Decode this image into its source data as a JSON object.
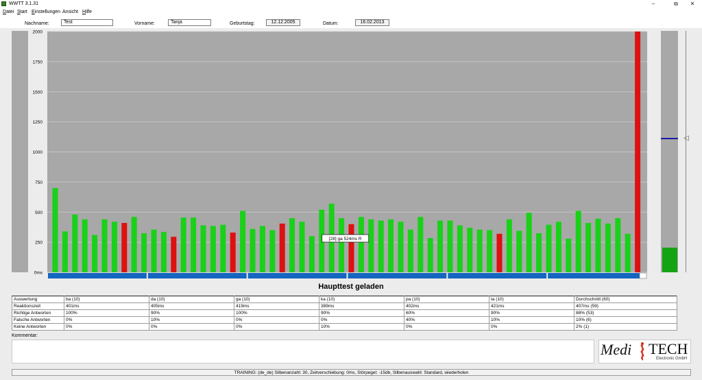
{
  "window": {
    "title": "WWTT 3.1.31",
    "minimize": "–",
    "maximize": "⧉",
    "close": "✕"
  },
  "menu": [
    {
      "hot": "D",
      "rest": "atei"
    },
    {
      "hot": "S",
      "rest": "tart"
    },
    {
      "hot": "E",
      "rest": "instellungen"
    },
    {
      "hot": "",
      "rest": "Ansicht"
    },
    {
      "hot": "H",
      "rest": "ilfe"
    }
  ],
  "header": {
    "nachname_label": "Nachname:",
    "nachname_value": "Test",
    "vorname_label": "Vorname:",
    "vorname_value": "Tanja",
    "geburtstag_label": "Geburtstag:",
    "geburtstag_value": "12.12.2005",
    "datum_label": "Datum:",
    "datum_value": "16.02.2013"
  },
  "chart_data": {
    "type": "bar",
    "title": "",
    "xlabel": "",
    "ylabel": "",
    "ylim": [
      0,
      2000
    ],
    "ytick_labels": [
      "2000",
      "1750",
      "1500",
      "1250",
      "1000",
      "750",
      "500",
      "250",
      "0ms"
    ],
    "yticks": [
      2000,
      1750,
      1500,
      1250,
      1000,
      750,
      500,
      250,
      0
    ],
    "grid": true,
    "colors": {
      "correct": "#19d119",
      "wrong": "#dd1111",
      "background": "#a8a8a8",
      "grid": "#c4c4c4",
      "segment": "#1566c0"
    },
    "values": [
      700,
      340,
      480,
      440,
      310,
      440,
      420,
      410,
      460,
      325,
      355,
      335,
      295,
      455,
      455,
      390,
      385,
      395,
      330,
      510,
      360,
      385,
      350,
      405,
      450,
      420,
      300,
      520,
      570,
      450,
      400,
      460,
      440,
      430,
      440,
      420,
      355,
      460,
      285,
      430,
      430,
      390,
      370,
      355,
      350,
      320,
      440,
      345,
      495,
      325,
      395,
      420,
      280,
      510,
      410,
      445,
      405,
      450,
      320,
      2000
    ],
    "status": [
      "c",
      "c",
      "c",
      "c",
      "c",
      "c",
      "c",
      "w",
      "c",
      "c",
      "c",
      "c",
      "w",
      "c",
      "c",
      "c",
      "c",
      "c",
      "w",
      "c",
      "c",
      "c",
      "c",
      "w",
      "c",
      "c",
      "c",
      "c",
      "c",
      "c",
      "w",
      "c",
      "c",
      "c",
      "c",
      "c",
      "c",
      "c",
      "c",
      "c",
      "c",
      "c",
      "c",
      "c",
      "c",
      "w",
      "c",
      "c",
      "c",
      "c",
      "c",
      "c",
      "c",
      "c",
      "c",
      "c",
      "c",
      "c",
      "c",
      "w"
    ],
    "segments": 6,
    "tooltip": "[28]  ga  524ms R"
  },
  "status_title": "Haupttest geladen",
  "stats": {
    "rows": [
      [
        "Auswertung",
        "ba (10)",
        "da (10)",
        "ga (10)",
        "ka (10)",
        "pa (10)",
        "ta (10)",
        "Durchschnitt (60)"
      ],
      [
        "Reaktionszeit",
        "401ms",
        "405ms",
        "419ms",
        "389ms",
        "402ms",
        "421ms",
        "407ms (59)"
      ],
      [
        "Richtige Antworten",
        "100%",
        "90%",
        "100%",
        "90%",
        "60%",
        "90%",
        "88% (53)"
      ],
      [
        "Falsche Antworten",
        "0%",
        "10%",
        "0%",
        "0%",
        "40%",
        "10%",
        "10% (6)"
      ],
      [
        "Keine Antworten",
        "0%",
        "0%",
        "0%",
        "10%",
        "0%",
        "0%",
        "2% (1)"
      ]
    ]
  },
  "comment_label": "Kommentar:",
  "logo": {
    "left": "Medi",
    "right": "TECH",
    "sub": "Electronic GmbH"
  },
  "statusbar": "TRAINING: (de_de)   Silbenanzahl: 30,   Zeitverschiebung:    0ms,   Störpegel: -15db,   Silbenauswahl: Standard, wiederholen"
}
